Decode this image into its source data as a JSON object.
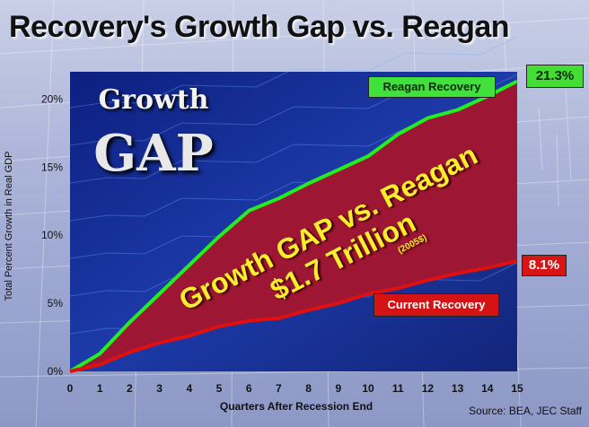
{
  "title": "Recovery's Growth Gap vs. Reagan",
  "source": "Source: BEA, JEC Staff",
  "overlay": {
    "growth_word": "Growth",
    "gap_word": "GAP",
    "callout_line1": "Growth GAP vs. Reagan",
    "callout_line2": "$1.7 Trillion",
    "callout_unit": "(2005$)"
  },
  "end_labels": {
    "reagan": "21.3%",
    "current": "8.1%"
  },
  "legend": {
    "reagan": "Reagan Recovery",
    "current": "Current Recovery"
  },
  "colors": {
    "plot_bg": "#1a2f9a",
    "gap_fill": "#a4152e",
    "reagan_line": "#22ee22",
    "current_line": "#e01010",
    "callout_text": "#ffef2a"
  },
  "chart_data": {
    "type": "line",
    "title": "Recovery's Growth Gap vs. Reagan",
    "xlabel": "Quarters After Recession End",
    "ylabel": "Total Percent Growth in Real GDP",
    "x": [
      0,
      1,
      2,
      3,
      4,
      5,
      6,
      7,
      8,
      9,
      10,
      11,
      12,
      13,
      14,
      15
    ],
    "xlim": [
      0,
      15
    ],
    "ylim": [
      0,
      22
    ],
    "yticks": [
      0,
      5,
      10,
      15,
      20
    ],
    "ytick_labels": [
      "0%",
      "5%",
      "10%",
      "15%",
      "20%"
    ],
    "xtick_labels": [
      "0",
      "1",
      "2",
      "3",
      "4",
      "5",
      "6",
      "7",
      "8",
      "9",
      "10",
      "11",
      "12",
      "13",
      "14",
      "15"
    ],
    "series": [
      {
        "name": "Reagan Recovery",
        "values": [
          0,
          1.3,
          3.6,
          5.7,
          7.8,
          9.9,
          11.8,
          12.7,
          13.8,
          14.8,
          15.8,
          17.4,
          18.6,
          19.2,
          20.2,
          21.3
        ]
      },
      {
        "name": "Current Recovery",
        "values": [
          0,
          0.5,
          1.4,
          2.1,
          2.6,
          3.3,
          3.7,
          3.9,
          4.5,
          5.0,
          5.7,
          6.1,
          6.7,
          7.2,
          7.6,
          8.1
        ]
      }
    ],
    "grid": false,
    "legend_placement": "inline labels on lines"
  }
}
